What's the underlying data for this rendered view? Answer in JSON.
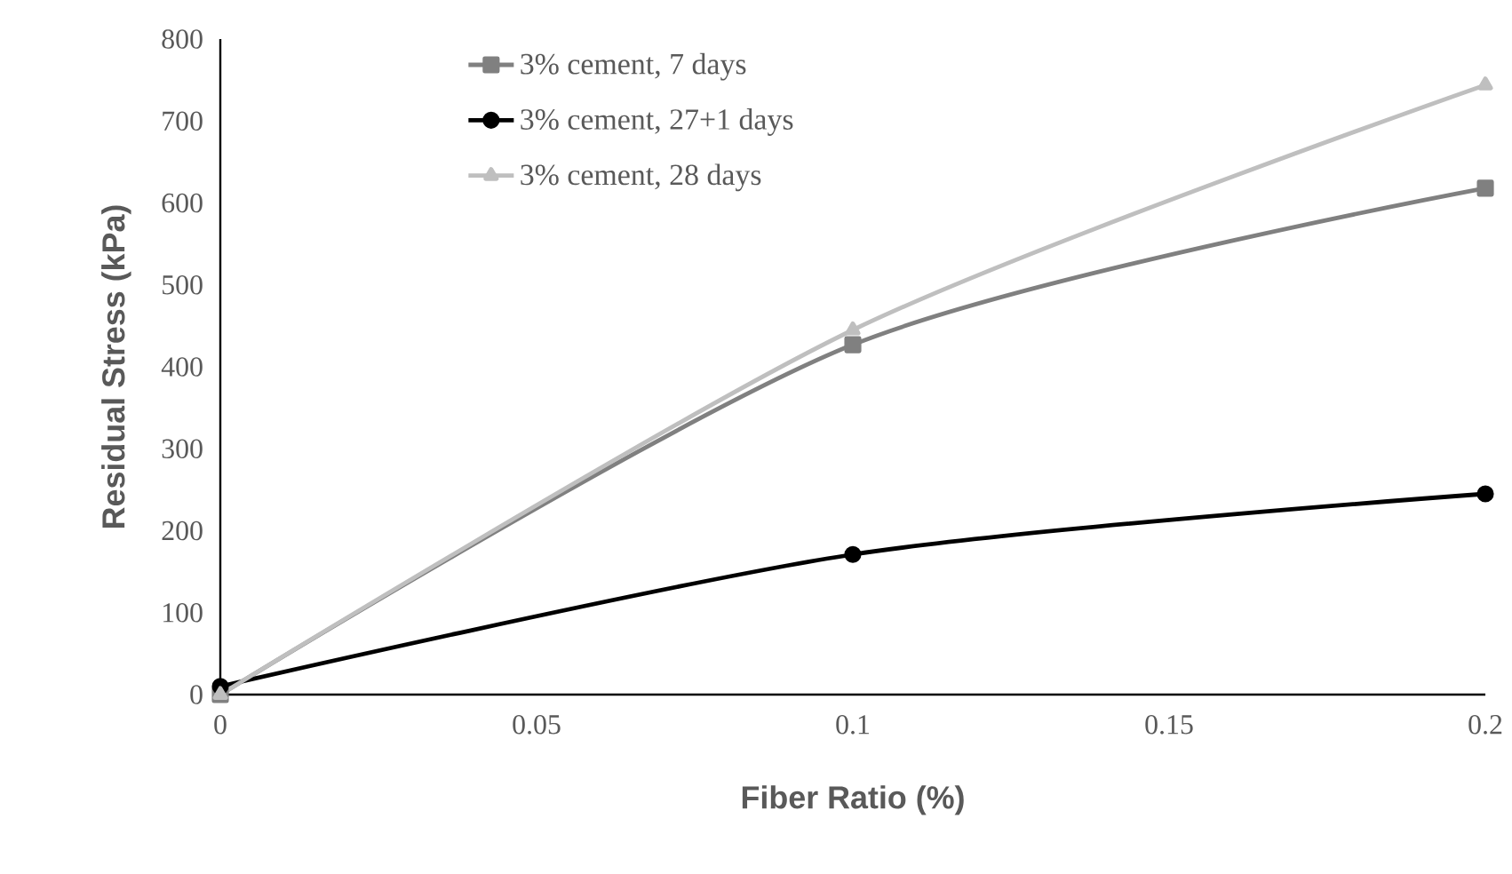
{
  "chart_data": {
    "type": "line",
    "xlabel": "Fiber Ratio (%)",
    "ylabel": "Residual Stress (kPa)",
    "x": [
      0,
      0.1,
      0.2
    ],
    "series": [
      {
        "name": "3% cement, 7 days",
        "color": "#808080",
        "marker": "square",
        "values": [
          0,
          427,
          618
        ]
      },
      {
        "name": "3% cement, 27+1 days",
        "color": "#000000",
        "marker": "circle",
        "values": [
          10,
          171,
          245
        ]
      },
      {
        "name": "3% cement, 28 days",
        "color": "#bfbfbf",
        "marker": "triangle",
        "values": [
          0,
          445,
          744
        ]
      }
    ],
    "xlim": [
      0,
      0.2
    ],
    "xticks": [
      0,
      0.05,
      0.1,
      0.15,
      0.2
    ],
    "ylim": [
      0,
      800
    ],
    "yticks": [
      0,
      100,
      200,
      300,
      400,
      500,
      600,
      700,
      800
    ],
    "grid": false,
    "legend": "top",
    "line_style": "solid"
  }
}
